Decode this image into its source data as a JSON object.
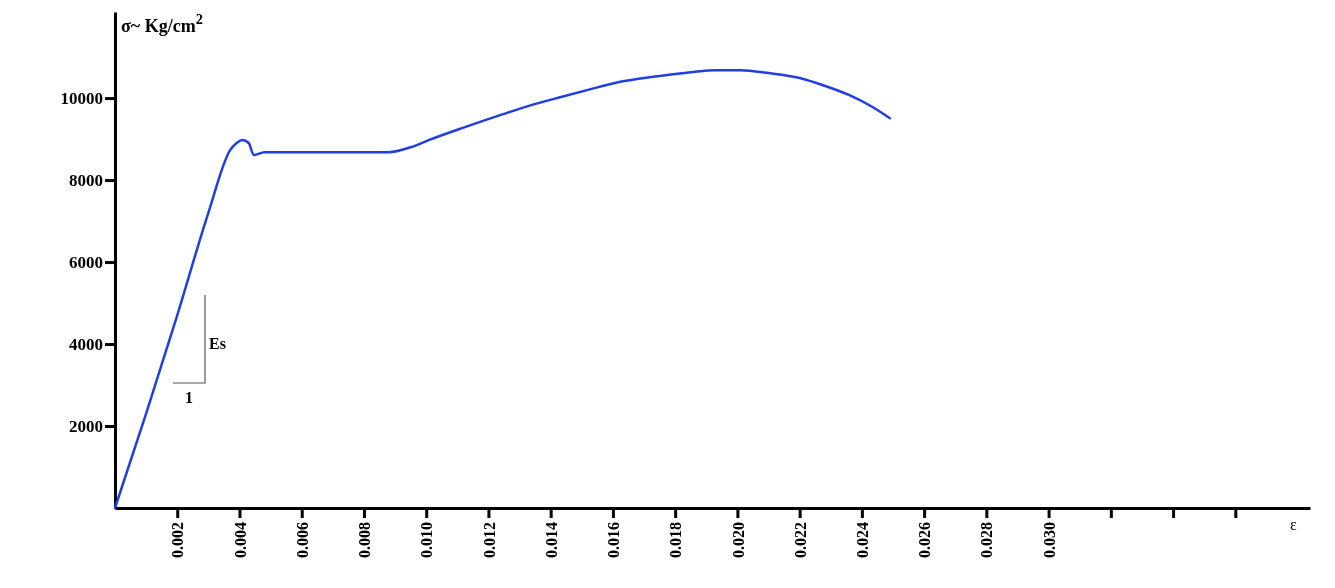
{
  "chart_data": {
    "type": "line",
    "xlabel": "ε",
    "ylabel": "σ~ Kg/cm$^{2}$",
    "xlim": [
      0,
      0.0384
    ],
    "ylim": [
      0,
      12100
    ],
    "xticks": [
      {
        "value": 0.002,
        "label": "0.002"
      },
      {
        "value": 0.004,
        "label": "0.004"
      },
      {
        "value": 0.006,
        "label": "0.006"
      },
      {
        "value": 0.008,
        "label": "0.008"
      },
      {
        "value": 0.01,
        "label": "0.010"
      },
      {
        "value": 0.012,
        "label": "0.012"
      },
      {
        "value": 0.014,
        "label": "0.014"
      },
      {
        "value": 0.016,
        "label": "0.016"
      },
      {
        "value": 0.018,
        "label": "0.018"
      },
      {
        "value": 0.02,
        "label": "0.020"
      },
      {
        "value": 0.022,
        "label": "0.022"
      },
      {
        "value": 0.024,
        "label": "0.024"
      },
      {
        "value": 0.026,
        "label": "0.026"
      },
      {
        "value": 0.028,
        "label": "0.028"
      },
      {
        "value": 0.03,
        "label": "0.030"
      },
      {
        "value": 0.032,
        "label": null
      },
      {
        "value": 0.034,
        "label": null
      },
      {
        "value": 0.036,
        "label": null
      }
    ],
    "yticks": [
      2000,
      4000,
      6000,
      8000,
      10000
    ],
    "grid": false,
    "marker": "none",
    "line_style": "solid",
    "series": [
      {
        "color": "#1f3fe0",
        "x": [
          0,
          0.001,
          0.002,
          0.003,
          0.0037,
          0.0039,
          0.0041,
          0.0043,
          0.00446,
          0.0048,
          0.006,
          0.008,
          0.0088,
          0.0095,
          0.0101,
          0.0112,
          0.0124,
          0.0133,
          0.0143,
          0.0152,
          0.0162,
          0.0173,
          0.0185,
          0.0193,
          0.0201,
          0.021,
          0.022,
          0.0228,
          0.0236,
          0.0243,
          0.0249
        ],
        "values": [
          0,
          2300,
          4700,
          7200,
          8730,
          8900,
          8980,
          8900,
          8610,
          8680,
          8680,
          8680,
          8680,
          8800,
          8980,
          9280,
          9590,
          9810,
          10020,
          10200,
          10390,
          10520,
          10630,
          10680,
          10680,
          10610,
          10490,
          10300,
          10070,
          9800,
          9510
        ]
      }
    ],
    "annotations": [
      "Es",
      "1"
    ]
  }
}
